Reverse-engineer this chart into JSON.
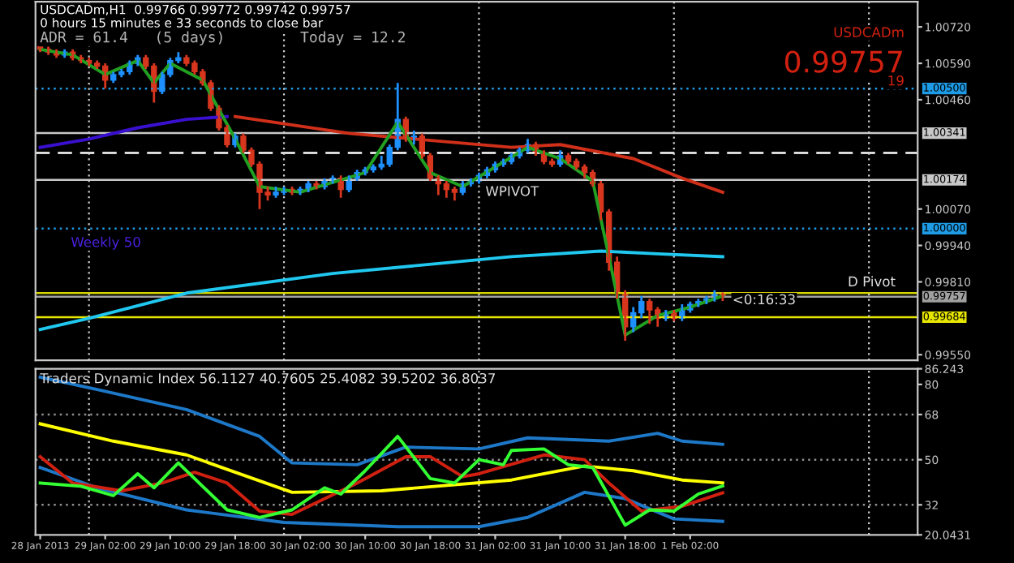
{
  "chart_data": [
    {
      "type": "candlestick",
      "x": [
        "2013-01-28T18:00",
        "2013-01-28T19:00",
        "2013-01-28T20:00",
        "2013-01-28T21:00",
        "2013-01-28T22:00",
        "2013-01-28T23:00",
        "2013-01-29T00:00",
        "2013-01-29T01:00",
        "2013-01-29T02:00",
        "2013-01-29T03:00",
        "2013-01-29T04:00",
        "2013-01-29T05:00",
        "2013-01-29T06:00",
        "2013-01-29T07:00",
        "2013-01-29T08:00",
        "2013-01-29T09:00",
        "2013-01-29T10:00",
        "2013-01-29T11:00",
        "2013-01-29T12:00",
        "2013-01-29T13:00",
        "2013-01-29T14:00",
        "2013-01-29T15:00",
        "2013-01-29T16:00",
        "2013-01-29T17:00",
        "2013-01-29T18:00",
        "2013-01-29T19:00",
        "2013-01-29T20:00",
        "2013-01-29T21:00",
        "2013-01-29T22:00",
        "2013-01-29T23:00",
        "2013-01-30T00:00",
        "2013-01-30T01:00",
        "2013-01-30T02:00",
        "2013-01-30T03:00",
        "2013-01-30T04:00",
        "2013-01-30T05:00",
        "2013-01-30T06:00",
        "2013-01-30T07:00",
        "2013-01-30T08:00",
        "2013-01-30T09:00",
        "2013-01-30T10:00",
        "2013-01-30T11:00",
        "2013-01-30T12:00",
        "2013-01-30T13:00",
        "2013-01-30T14:00",
        "2013-01-30T15:00",
        "2013-01-30T16:00",
        "2013-01-30T17:00",
        "2013-01-30T18:00",
        "2013-01-30T19:00",
        "2013-01-30T20:00",
        "2013-01-30T21:00",
        "2013-01-30T22:00",
        "2013-01-30T23:00",
        "2013-01-31T00:00",
        "2013-01-31T01:00",
        "2013-01-31T02:00",
        "2013-01-31T03:00",
        "2013-01-31T04:00",
        "2013-01-31T05:00",
        "2013-01-31T06:00",
        "2013-01-31T07:00",
        "2013-01-31T08:00",
        "2013-01-31T09:00",
        "2013-01-31T10:00",
        "2013-01-31T11:00",
        "2013-01-31T12:00",
        "2013-01-31T13:00",
        "2013-01-31T14:00",
        "2013-01-31T15:00",
        "2013-01-31T16:00",
        "2013-01-31T17:00",
        "2013-01-31T18:00",
        "2013-01-31T19:00",
        "2013-01-31T20:00",
        "2013-01-31T21:00",
        "2013-01-31T22:00",
        "2013-01-31T23:00",
        "2013-02-01T00:00",
        "2013-02-01T01:00",
        "2013-02-01T02:00",
        "2013-02-01T03:00",
        "2013-02-01T04:00",
        "2013-02-01T05:00",
        "2013-02-01T06:00"
      ],
      "ohlc": [
        [
          1.0065,
          1.0066,
          1.0063,
          1.0064
        ],
        [
          1.0064,
          1.0065,
          1.0062,
          1.0063
        ],
        [
          1.0063,
          1.0064,
          1.0061,
          1.0062
        ],
        [
          1.0062,
          1.0064,
          1.0061,
          1.0063
        ],
        [
          1.0063,
          1.0064,
          1.006,
          1.0061
        ],
        [
          1.0061,
          1.0062,
          1.0059,
          1.006
        ],
        [
          1.006,
          1.0061,
          1.0058,
          1.0059
        ],
        [
          1.0059,
          1.006,
          1.0057,
          1.0058
        ],
        [
          1.0058,
          1.0059,
          1.005,
          1.0053
        ],
        [
          1.0053,
          1.0056,
          1.0052,
          1.0055
        ],
        [
          1.0055,
          1.0057,
          1.0054,
          1.0056
        ],
        [
          1.0056,
          1.006,
          1.0055,
          1.0059
        ],
        [
          1.0059,
          1.0062,
          1.0058,
          1.0061
        ],
        [
          1.0061,
          1.0062,
          1.0057,
          1.0058
        ],
        [
          1.0058,
          1.0059,
          1.0045,
          1.0049
        ],
        [
          1.0049,
          1.0056,
          1.0048,
          1.0055
        ],
        [
          1.0055,
          1.0061,
          1.0054,
          1.006
        ],
        [
          1.006,
          1.0063,
          1.0059,
          1.0061
        ],
        [
          1.0061,
          1.0062,
          1.0058,
          1.0059
        ],
        [
          1.0059,
          1.006,
          1.0055,
          1.0056
        ],
        [
          1.0056,
          1.0057,
          1.0051,
          1.0052
        ],
        [
          1.0052,
          1.0053,
          1.0042,
          1.0043
        ],
        [
          1.0043,
          1.0044,
          1.0035,
          1.0036
        ],
        [
          1.0036,
          1.0037,
          1.0029,
          1.003
        ],
        [
          1.003,
          1.0034,
          1.0029,
          1.0033
        ],
        [
          1.0033,
          1.0034,
          1.0027,
          1.0028
        ],
        [
          1.0028,
          1.0029,
          1.0022,
          1.0023
        ],
        [
          1.0023,
          1.0024,
          1.0007,
          1.0013
        ],
        [
          1.0013,
          1.0015,
          1.001,
          1.0012
        ],
        [
          1.0012,
          1.0015,
          1.0011,
          1.0013
        ],
        [
          1.0013,
          1.0015,
          1.0012,
          1.0014
        ],
        [
          1.0014,
          1.0015,
          1.0012,
          1.0013
        ],
        [
          1.0013,
          1.0015,
          1.0012,
          1.0014
        ],
        [
          1.0014,
          1.0017,
          1.0013,
          1.0016
        ],
        [
          1.0016,
          1.0017,
          1.0014,
          1.0015
        ],
        [
          1.0015,
          1.0018,
          1.0014,
          1.0017
        ],
        [
          1.0017,
          1.0019,
          1.0016,
          1.0018
        ],
        [
          1.0018,
          1.0019,
          1.0011,
          1.0014
        ],
        [
          1.0014,
          1.0019,
          1.0013,
          1.0018
        ],
        [
          1.0018,
          1.0021,
          1.0017,
          1.002
        ],
        [
          1.002,
          1.0022,
          1.0019,
          1.0021
        ],
        [
          1.0021,
          1.0023,
          1.002,
          1.0022
        ],
        [
          1.0022,
          1.0026,
          1.0021,
          1.0023
        ],
        [
          1.0023,
          1.003,
          1.0022,
          1.0029
        ],
        [
          1.0029,
          1.0052,
          1.0028,
          1.0039
        ],
        [
          1.0039,
          1.004,
          1.0031,
          1.0032
        ],
        [
          1.0032,
          1.0035,
          1.003,
          1.0033
        ],
        [
          1.0033,
          1.0034,
          1.0025,
          1.0026
        ],
        [
          1.0026,
          1.0027,
          1.0017,
          1.0018
        ],
        [
          1.0018,
          1.0019,
          1.0012,
          1.0016
        ],
        [
          1.0016,
          1.0017,
          1.0011,
          1.0014
        ],
        [
          1.0014,
          1.0015,
          1.001,
          1.0013
        ],
        [
          1.0013,
          1.0017,
          1.0012,
          1.0016
        ],
        [
          1.0016,
          1.0018,
          1.0015,
          1.0017
        ],
        [
          1.0017,
          1.002,
          1.0016,
          1.0019
        ],
        [
          1.0019,
          1.0022,
          1.0018,
          1.0021
        ],
        [
          1.0021,
          1.0024,
          1.002,
          1.0023
        ],
        [
          1.0023,
          1.0025,
          1.0022,
          1.0024
        ],
        [
          1.0024,
          1.0027,
          1.0023,
          1.0026
        ],
        [
          1.0026,
          1.0029,
          1.0025,
          1.0028
        ],
        [
          1.0028,
          1.0032,
          1.0027,
          1.003
        ],
        [
          1.003,
          1.0031,
          1.0026,
          1.0027
        ],
        [
          1.0027,
          1.0028,
          1.0023,
          1.0024
        ],
        [
          1.0024,
          1.0025,
          1.0022,
          1.0023
        ],
        [
          1.0023,
          1.0028,
          1.0022,
          1.0026
        ],
        [
          1.0026,
          1.0027,
          1.0023,
          1.0024
        ],
        [
          1.0024,
          1.0025,
          1.0021,
          1.0022
        ],
        [
          1.0022,
          1.0023,
          1.0018,
          1.002
        ],
        [
          1.002,
          1.0021,
          1.0015,
          1.0016
        ],
        [
          1.0016,
          1.0017,
          1.0003,
          1.0006
        ],
        [
          1.0006,
          1.0007,
          0.9985,
          0.9988
        ],
        [
          0.9988,
          0.999,
          0.9975,
          0.9977
        ],
        [
          0.9977,
          0.9978,
          0.996,
          0.9965
        ],
        [
          0.9965,
          0.9972,
          0.9963,
          0.997
        ],
        [
          0.997,
          0.9976,
          0.9968,
          0.9974
        ],
        [
          0.9974,
          0.9975,
          0.9966,
          0.9971
        ],
        [
          0.9971,
          0.9972,
          0.9965,
          0.9968
        ],
        [
          0.9968,
          0.9971,
          0.9967,
          0.997
        ],
        [
          0.997,
          0.9971,
          0.9967,
          0.9968
        ],
        [
          0.9968,
          0.9973,
          0.9967,
          0.9971
        ],
        [
          0.9971,
          0.9974,
          0.997,
          0.9973
        ],
        [
          0.9973,
          0.9975,
          0.9972,
          0.9974
        ],
        [
          0.9974,
          0.9976,
          0.9973,
          0.9975
        ],
        [
          0.9975,
          0.9978,
          0.9974,
          0.9977
        ],
        [
          0.99766,
          0.99772,
          0.99742,
          0.99757
        ]
      ],
      "colors": [
        "#d8361e",
        "#d8361e",
        "#d8361e",
        "#1e90ff",
        "#d8361e",
        "#d8361e",
        "#d8361e",
        "#d8361e",
        "#d8361e",
        "#1e90ff",
        "#1e90ff",
        "#1e90ff",
        "#1e90ff",
        "#d8361e",
        "#d8361e",
        "#1e90ff",
        "#1e90ff",
        "#1e90ff",
        "#d8361e",
        "#d8361e",
        "#d8361e",
        "#d8361e",
        "#d8361e",
        "#d8361e",
        "#1e90ff",
        "#d8361e",
        "#d8361e",
        "#d8361e",
        "#d8361e",
        "#1e90ff",
        "#1e90ff",
        "#d8361e",
        "#1e90ff",
        "#1e90ff",
        "#d8361e",
        "#1e90ff",
        "#1e90ff",
        "#d8361e",
        "#1e90ff",
        "#1e90ff",
        "#1e90ff",
        "#1e90ff",
        "#1e90ff",
        "#1e90ff",
        "#1e90ff",
        "#d8361e",
        "#1e90ff",
        "#d8361e",
        "#d8361e",
        "#d8361e",
        "#d8361e",
        "#d8361e",
        "#1e90ff",
        "#1e90ff",
        "#1e90ff",
        "#1e90ff",
        "#1e90ff",
        "#1e90ff",
        "#1e90ff",
        "#1e90ff",
        "#1e90ff",
        "#d8361e",
        "#d8361e",
        "#d8361e",
        "#1e90ff",
        "#d8361e",
        "#d8361e",
        "#d8361e",
        "#d8361e",
        "#d8361e",
        "#d8361e",
        "#d8361e",
        "#d8361e",
        "#1e90ff",
        "#1e90ff",
        "#d8361e",
        "#d8361e",
        "#1e90ff",
        "#d8361e",
        "#1e90ff",
        "#1e90ff",
        "#1e90ff",
        "#1e90ff",
        "#1e90ff",
        "#d8361e"
      ],
      "series": [
        {
          "type": "line",
          "color": "#3a10d0",
          "x": [
            "2013-01-28T18:00",
            "2013-01-29T00:00",
            "2013-01-29T06:00",
            "2013-01-29T12:00",
            "2013-01-29T17:00"
          ],
          "values": [
            1.0029,
            1.0032,
            1.0036,
            1.0039,
            1.004
          ]
        },
        {
          "type": "line",
          "color": "#d0301a",
          "x": [
            "2013-01-29T18:00",
            "2013-01-30T08:00",
            "2013-01-31T04:00",
            "2013-01-31T10:00",
            "2013-01-31T19:00",
            "2013-02-01T01:00",
            "2013-02-01T06:00"
          ],
          "values": [
            1.004,
            1.0034,
            1.0029,
            1.003,
            1.0025,
            1.0018,
            1.0013
          ]
        },
        {
          "type": "line",
          "color": "#20c8f0",
          "x": [
            "2013-01-28T18:00",
            "2013-01-29T00:00",
            "2013-01-29T12:00",
            "2013-01-30T06:00",
            "2013-01-31T04:00",
            "2013-01-31T15:00",
            "2013-01-31T22:00",
            "2013-02-01T06:00"
          ],
          "values": [
            0.9964,
            0.9968,
            0.9977,
            0.9984,
            0.999,
            0.9992,
            0.9991,
            0.999
          ]
        },
        {
          "type": "line",
          "color": "#22a022",
          "x": [
            "2013-01-28T18:00",
            "2013-01-28T22:00",
            "2013-01-29T02:00",
            "2013-01-29T06:00",
            "2013-01-29T08:00",
            "2013-01-29T10:00",
            "2013-01-29T14:00",
            "2013-01-29T18:00",
            "2013-01-29T21:00",
            "2013-01-30T02:00",
            "2013-01-30T10:00",
            "2013-01-30T14:00",
            "2013-01-30T18:00",
            "2013-01-30T22:00",
            "2013-01-31T06:00",
            "2013-01-31T10:00",
            "2013-01-31T14:00",
            "2013-01-31T16:00",
            "2013-01-31T18:00",
            "2013-01-31T22:00",
            "2013-02-01T02:00",
            "2013-02-01T06:00"
          ],
          "values": [
            1.0064,
            1.0062,
            1.0055,
            1.006,
            1.0052,
            1.0059,
            1.0053,
            1.0032,
            1.0015,
            1.0013,
            1.002,
            1.0038,
            1.002,
            1.0015,
            1.0029,
            1.0025,
            1.0017,
            0.999,
            0.9962,
            0.9969,
            0.9972,
            0.9976
          ]
        }
      ],
      "ref_lines": [
        {
          "axis": "y",
          "value": 1.005,
          "label": "1.00500",
          "color": "#1e9be6",
          "line_style": "dotted"
        },
        {
          "axis": "y",
          "value": 1.00341,
          "label": "1.00341",
          "color": "#c8c8c8",
          "line_style": "solid"
        },
        {
          "axis": "y",
          "value": 1.0027,
          "color": "#ffffff",
          "line_style": "dashed"
        },
        {
          "axis": "y",
          "value": 1.00174,
          "label": "1.00174",
          "color": "#c8c8c8",
          "line_style": "solid"
        },
        {
          "axis": "y",
          "value": 1.0,
          "label": "1.00000",
          "color": "#1e9be6",
          "line_style": "dotted"
        },
        {
          "axis": "y",
          "value": 0.9977,
          "color": "#d4d400",
          "line_style": "solid"
        },
        {
          "axis": "y",
          "value": 0.99757,
          "label": "0.99757",
          "color": "#a0a0a0",
          "line_style": "solid"
        },
        {
          "axis": "y",
          "value": 0.99684,
          "label": "0.99684",
          "color": "#e6e600",
          "line_style": "solid"
        },
        {
          "axis": "x",
          "value": "2013-01-29T00:00",
          "color": "#d0d0d0",
          "line_style": "dotted"
        },
        {
          "axis": "x",
          "value": "2013-01-30T00:00",
          "color": "#d0d0d0",
          "line_style": "dotted"
        },
        {
          "axis": "x",
          "value": "2013-01-31T00:00",
          "color": "#d0d0d0",
          "line_style": "dotted"
        },
        {
          "axis": "x",
          "value": "2013-02-01T00:00",
          "color": "#d0d0d0",
          "line_style": "dotted"
        },
        {
          "axis": "x",
          "value": "2013-02-02T00:00",
          "color": "#d0d0d0",
          "line_style": "dotted"
        }
      ],
      "annotations": [
        "USDCADm,H1  0.99766 0.99772 0.99742 0.99757",
        "0 hours 15 minutes e 33 seconds to close bar",
        "ADR = 61.4   (5 days)",
        "Today = 12.2",
        "USDCADm",
        "0.99757",
        "19",
        "Weekly 50",
        "WPIVOT",
        "D Pivot",
        "<0:16:33"
      ],
      "xlim": [
        "2013-01-28T17:25",
        "2013-02-02T06:00"
      ],
      "ylim": [
        0.9953,
        1.0081
      ],
      "yticks": [
        {
          "value": 1.0072,
          "label": "1.00720"
        },
        {
          "value": 1.0059,
          "label": "1.00590"
        },
        {
          "value": 1.0046,
          "label": "1.00460"
        },
        {
          "value": 1.0007,
          "label": "1.00070"
        },
        {
          "value": 0.9994,
          "label": "0.99940"
        },
        {
          "value": 0.9981,
          "label": "0.99810"
        },
        {
          "value": 0.9955,
          "label": "0.99550"
        }
      ],
      "tick_labels": "y"
    },
    {
      "type": "line",
      "title": "Traders Dynamic Index 56.1127 40.7605 25.4082 39.5202 36.8037",
      "series": [
        {
          "color": "#1e78c8",
          "x": [
            "2013-01-28T18:00",
            "2013-01-29T01:00",
            "2013-01-29T12:00",
            "2013-01-29T21:00",
            "2013-01-30T01:00",
            "2013-01-30T09:00",
            "2013-01-30T15:00",
            "2013-01-31T00:00",
            "2013-01-31T06:00",
            "2013-01-31T16:00",
            "2013-01-31T22:00",
            "2013-02-01T01:00",
            "2013-02-01T06:00"
          ],
          "values": [
            82.9,
            78,
            70,
            59.3,
            48.7,
            48,
            55,
            54.3,
            58.7,
            57.4,
            60.5,
            57.4,
            56.1127
          ]
        },
        {
          "color": "#1e78c8",
          "x": [
            "2013-01-28T18:00",
            "2013-01-29T01:00",
            "2013-01-29T12:00",
            "2013-01-30T00:00",
            "2013-01-30T14:00",
            "2013-01-31T00:00",
            "2013-01-31T06:00",
            "2013-01-31T13:00",
            "2013-01-31T18:00",
            "2013-02-01T00:00",
            "2013-02-01T06:00"
          ],
          "values": [
            46.9,
            38.8,
            30,
            25,
            23.3,
            23.3,
            27,
            37,
            34.5,
            26.4,
            25.4082
          ]
        },
        {
          "color": "#ffff00",
          "x": [
            "2013-01-28T18:00",
            "2013-01-29T03:00",
            "2013-01-29T12:00",
            "2013-01-29T18:00",
            "2013-01-30T01:00",
            "2013-01-30T12:00",
            "2013-01-31T04:00",
            "2013-01-31T13:00",
            "2013-01-31T19:00",
            "2013-02-01T01:00",
            "2013-02-01T06:00"
          ],
          "values": [
            64.3,
            57.4,
            51.9,
            45,
            37,
            37.6,
            41.9,
            47.5,
            45.6,
            41.9,
            40.7605
          ]
        },
        {
          "color": "#d02010",
          "x": [
            "2013-01-28T18:00",
            "2013-01-28T22:00",
            "2013-01-29T04:00",
            "2013-01-29T09:00",
            "2013-01-29T13:00",
            "2013-01-29T17:00",
            "2013-01-29T21:00",
            "2013-01-30T01:00",
            "2013-01-30T09:00",
            "2013-01-30T15:00",
            "2013-01-30T18:00",
            "2013-01-30T22:00",
            "2013-01-31T00:00",
            "2013-01-31T08:00",
            "2013-01-31T13:00",
            "2013-01-31T16:00",
            "2013-01-31T20:00",
            "2013-02-01T01:00",
            "2013-02-01T06:00"
          ],
          "values": [
            51.2,
            40.7,
            37.6,
            40.7,
            45,
            40.7,
            29.5,
            28.2,
            40.7,
            51.2,
            51.2,
            43.2,
            44.4,
            51.9,
            50,
            40.7,
            29.5,
            31.4,
            36.8037
          ]
        },
        {
          "color": "#33ff33",
          "x": [
            "2013-01-28T18:00",
            "2013-01-28T23:00",
            "2013-01-29T03:00",
            "2013-01-29T06:00",
            "2013-01-29T08:00",
            "2013-01-29T11:00",
            "2013-01-29T17:00",
            "2013-01-29T21:00",
            "2013-01-30T01:00",
            "2013-01-30T05:00",
            "2013-01-30T07:00",
            "2013-01-30T10:00",
            "2013-01-30T14:00",
            "2013-01-30T18:00",
            "2013-01-30T21:00",
            "2013-01-31T00:00",
            "2013-01-31T03:00",
            "2013-01-31T04:00",
            "2013-01-31T08:00",
            "2013-01-31T11:00",
            "2013-01-31T14:00",
            "2013-01-31T18:00",
            "2013-01-31T21:00",
            "2013-02-01T00:00",
            "2013-02-01T03:00",
            "2013-02-01T06:00"
          ],
          "values": [
            40.7,
            39.4,
            35.7,
            44.4,
            38.8,
            48.7,
            30,
            27,
            30,
            38.8,
            36.3,
            45.6,
            59.3,
            42.5,
            40.7,
            50,
            48,
            53.7,
            54.3,
            48,
            46.9,
            23.9,
            30,
            29.5,
            36.3,
            39.5202
          ]
        }
      ],
      "ref_lines": [
        {
          "axis": "y",
          "value": 32,
          "color": "#909090",
          "line_style": "dotted"
        },
        {
          "axis": "y",
          "value": 50,
          "color": "#909090",
          "line_style": "dotted"
        },
        {
          "axis": "y",
          "value": 68,
          "color": "#909090",
          "line_style": "dotted"
        },
        {
          "axis": "x",
          "value": "2013-01-29T00:00",
          "color": "#d0d0d0",
          "line_style": "dotted"
        },
        {
          "axis": "x",
          "value": "2013-01-30T00:00",
          "color": "#d0d0d0",
          "line_style": "dotted"
        },
        {
          "axis": "x",
          "value": "2013-01-31T00:00",
          "color": "#d0d0d0",
          "line_style": "dotted"
        },
        {
          "axis": "x",
          "value": "2013-02-01T00:00",
          "color": "#d0d0d0",
          "line_style": "dotted"
        },
        {
          "axis": "x",
          "value": "2013-02-02T00:00",
          "color": "#d0d0d0",
          "line_style": "dotted"
        }
      ],
      "xlim": [
        "2013-01-28T17:25",
        "2013-02-02T06:00"
      ],
      "xticks": [
        {
          "value": "2013-01-28T18:00",
          "label": "28 Jan 2013"
        },
        {
          "value": "2013-01-29T02:00",
          "label": "29 Jan 02:00"
        },
        {
          "value": "2013-01-29T10:00",
          "label": "29 Jan 10:00"
        },
        {
          "value": "2013-01-29T18:00",
          "label": "29 Jan 18:00"
        },
        {
          "value": "2013-01-30T02:00",
          "label": "30 Jan 02:00"
        },
        {
          "value": "2013-01-30T10:00",
          "label": "30 Jan 10:00"
        },
        {
          "value": "2013-01-30T18:00",
          "label": "30 Jan 18:00"
        },
        {
          "value": "2013-01-31T02:00",
          "label": "31 Jan 02:00"
        },
        {
          "value": "2013-01-31T10:00",
          "label": "31 Jan 10:00"
        },
        {
          "value": "2013-01-31T18:00",
          "label": "31 Jan 18:00"
        },
        {
          "value": "2013-02-01T02:00",
          "label": "1 Feb 02:00"
        }
      ],
      "ylim": [
        20.0431,
        86.243
      ],
      "yticks": [
        86.243,
        80,
        68,
        50,
        32,
        20.0431
      ]
    }
  ]
}
